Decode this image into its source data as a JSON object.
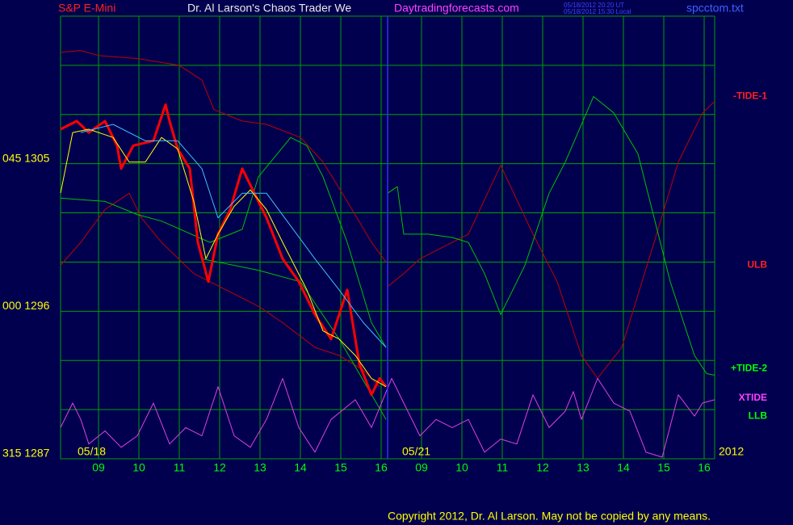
{
  "header": {
    "instrument": "S&P E-Mini",
    "title": "Dr. Al Larson's Chaos Trader We",
    "site": "Daytradingforecasts.com",
    "stamp_ut": "05/18/2012 20:20 UT",
    "stamp_local": "05/18/2012 15:30 Local",
    "file": "spcctom.txt"
  },
  "chart_data": {
    "type": "line",
    "ylim": [
      1287,
      1314
    ],
    "xlim": [
      -0.94,
      15.26
    ],
    "yticks": [
      {
        "value": 1287,
        "label": "315 1287"
      },
      {
        "value": 1296,
        "label": "000 1296"
      },
      {
        "value": 1305,
        "label": "045 1305"
      }
    ],
    "ygrid": [
      1287,
      1290,
      1293,
      1296,
      1299,
      1302,
      1305,
      1308,
      1311,
      1314
    ],
    "xticks": [
      {
        "value": 0,
        "label": "09"
      },
      {
        "value": 1,
        "label": "10"
      },
      {
        "value": 2,
        "label": "11"
      },
      {
        "value": 3,
        "label": "12"
      },
      {
        "value": 4,
        "label": "13"
      },
      {
        "value": 5,
        "label": "14"
      },
      {
        "value": 6,
        "label": "15"
      },
      {
        "value": 7,
        "label": "16"
      },
      {
        "value": 8,
        "label": "09"
      },
      {
        "value": 9,
        "label": "10"
      },
      {
        "value": 10,
        "label": "11"
      },
      {
        "value": 11,
        "label": "12"
      },
      {
        "value": 12,
        "label": "13"
      },
      {
        "value": 13,
        "label": "14"
      },
      {
        "value": 14,
        "label": "15"
      },
      {
        "value": 15,
        "label": "16"
      }
    ],
    "grid": true,
    "date_labels": [
      "05/18",
      "05/21",
      "2012"
    ],
    "series": [
      {
        "color": "#c00000",
        "width": 1,
        "x": [
          -0.94,
          -0.44,
          0,
          1,
          2,
          2.56,
          2.86,
          3.56,
          4.16,
          5,
          5.56,
          6.16,
          6.76,
          7.12
        ],
        "values": [
          1311.8,
          1311.9,
          1311.6,
          1311.4,
          1311.0,
          1310.1,
          1308.3,
          1307.6,
          1307.4,
          1306.6,
          1305.1,
          1302.7,
          1300.2,
          1299.0
        ]
      },
      {
        "color": "#c00000",
        "width": 1,
        "x": [
          -0.94,
          -0.44,
          0.16,
          0.76,
          1.06,
          1.56,
          2.36,
          3.16,
          3.96,
          4.56,
          5.36,
          5.96,
          6.56,
          6.96
        ],
        "values": [
          1298.8,
          1300.2,
          1302.2,
          1303.2,
          1301.7,
          1300.2,
          1298.3,
          1297.3,
          1296.3,
          1295.3,
          1293.8,
          1293.3,
          1292.4,
          1291.4
        ]
      },
      {
        "color": "#c00000",
        "width": 1,
        "x": [
          7.16,
          7.56,
          7.96,
          8.76,
          9.16,
          9.96,
          10.76,
          11.36,
          11.96,
          12.36,
          12.96,
          13.76,
          14.36,
          14.96,
          15.26
        ],
        "values": [
          1297.5,
          1298.3,
          1299.2,
          1300.2,
          1300.7,
          1304.9,
          1300.7,
          1297.8,
          1293.3,
          1291.9,
          1293.8,
          1300.2,
          1305.1,
          1308.1,
          1308.8
        ]
      },
      {
        "color": "#00c000",
        "width": 1,
        "x": [
          -0.94,
          -0.44,
          0.16,
          0.96,
          1.56,
          2.76,
          3.56,
          3.96,
          4.76,
          5.16,
          5.56,
          6.16,
          6.76,
          7.12
        ],
        "values": [
          1302.9,
          1302.8,
          1302.7,
          1301.9,
          1301.5,
          1300.2,
          1301.0,
          1304.2,
          1306.6,
          1306.1,
          1304.2,
          1300.2,
          1295.3,
          1293.8
        ]
      },
      {
        "color": "#00c000",
        "width": 1,
        "x": [
          2.56,
          3.96,
          5,
          5.96,
          7.12
        ],
        "values": [
          1299.2,
          1298.5,
          1297.8,
          1294.3,
          1289.4
        ]
      },
      {
        "color": "#00c000",
        "width": 1,
        "x": [
          7.16,
          7.4,
          7.56,
          8.16,
          8.76,
          9.16,
          9.56,
          9.96,
          10.56,
          11.16,
          11.56,
          12.26,
          12.76,
          13.36,
          13.76,
          14.16,
          14.76,
          15.06,
          15.26
        ],
        "values": [
          1303.2,
          1303.6,
          1300.7,
          1300.7,
          1300.5,
          1300.2,
          1298.3,
          1295.8,
          1298.8,
          1303.2,
          1305.1,
          1309.1,
          1308.1,
          1305.6,
          1301.7,
          1297.8,
          1293.3,
          1292.2,
          1292.1
        ]
      },
      {
        "color": "#e040e0",
        "width": 1,
        "x": [
          -0.94,
          -0.64,
          -0.44,
          -0.24,
          0.16,
          0.56,
          0.96,
          1.36,
          1.76,
          2.16,
          2.56,
          2.96,
          3.36,
          3.76,
          4.16,
          4.56,
          4.96,
          5.36,
          5.76,
          6.36,
          6.76,
          7.26,
          7.56,
          7.96,
          8.36,
          8.76,
          9.16,
          9.56,
          9.96,
          10.36,
          10.76,
          11.16,
          11.56,
          11.76,
          11.96,
          12.36,
          12.76,
          13.16,
          13.56,
          13.96,
          14.36,
          14.76,
          14.96,
          15.26
        ],
        "values": [
          1288.9,
          1290.4,
          1289.4,
          1287.9,
          1288.7,
          1287.7,
          1288.4,
          1290.4,
          1287.9,
          1288.9,
          1288.4,
          1291.4,
          1288.4,
          1287.7,
          1289.4,
          1291.9,
          1288.9,
          1287.4,
          1289.4,
          1290.6,
          1288.9,
          1291.9,
          1290.4,
          1288.4,
          1289.4,
          1288.9,
          1289.4,
          1287.4,
          1288.2,
          1287.9,
          1290.9,
          1288.9,
          1289.9,
          1291.1,
          1289.4,
          1291.9,
          1290.4,
          1289.9,
          1287.4,
          1287.1,
          1290.9,
          1289.6,
          1290.4,
          1290.6
        ]
      },
      {
        "color": "#ff0000",
        "width": 3,
        "x": [
          -0.94,
          -0.54,
          -0.24,
          0.16,
          0.46,
          0.56,
          0.86,
          1.36,
          1.66,
          1.76,
          1.96,
          2.26,
          2.46,
          2.72,
          2.96,
          3.26,
          3.56,
          3.86,
          4.16,
          4.56,
          4.96,
          5.36,
          5.76,
          6.16,
          6.46,
          6.76,
          6.96,
          7.12
        ],
        "values": [
          1307.1,
          1307.6,
          1306.9,
          1307.6,
          1306.1,
          1304.7,
          1306.1,
          1306.4,
          1308.6,
          1307.6,
          1305.9,
          1304.7,
          1300.2,
          1297.8,
          1300.7,
          1302.2,
          1304.7,
          1303.2,
          1301.7,
          1299.2,
          1297.8,
          1295.8,
          1294.3,
          1297.3,
          1292.8,
          1290.9,
          1291.9,
          1291.4
        ]
      },
      {
        "color": "#ffff00",
        "width": 1,
        "x": [
          -0.94,
          -0.64,
          -0.24,
          0.36,
          0.76,
          1.16,
          1.56,
          1.96,
          2.36,
          2.66,
          2.96,
          3.36,
          3.76,
          4.16,
          4.56,
          5.16,
          5.56,
          5.96,
          6.36,
          6.76,
          7.12
        ],
        "values": [
          1303.2,
          1306.9,
          1307.1,
          1306.6,
          1305.1,
          1305.1,
          1306.6,
          1305.9,
          1302.7,
          1299.2,
          1300.7,
          1302.4,
          1303.4,
          1302.2,
          1300.2,
          1297.3,
          1294.8,
          1294.3,
          1293.3,
          1291.9,
          1291.4
        ]
      },
      {
        "color": "#40c0ff",
        "width": 1,
        "x": [
          -0.44,
          0.36,
          1.16,
          1.96,
          2.56,
          2.96,
          3.56,
          4.16,
          4.76,
          5.36,
          5.96,
          6.56,
          7.12
        ],
        "values": [
          1306.9,
          1307.4,
          1306.4,
          1306.4,
          1304.7,
          1301.7,
          1303.2,
          1303.2,
          1301.2,
          1299.2,
          1297.3,
          1295.3,
          1293.8
        ]
      }
    ],
    "annotations": [
      {
        "text": "-TIDE-1",
        "color": "#ff2020",
        "y": 1309.1
      },
      {
        "text": "ULB",
        "color": "#ff2020",
        "y": 1298.8
      },
      {
        "text": "+TIDE-2",
        "color": "#00ff00",
        "y": 1292.5
      },
      {
        "text": "XTIDE",
        "color": "#ff40ff",
        "y": 1290.7
      },
      {
        "text": "LLB",
        "color": "#00ff00",
        "y": 1289.6
      }
    ]
  },
  "footer": {
    "copyright": "Copyright 2012, Dr. Al Larson. May not be copied by any means."
  }
}
